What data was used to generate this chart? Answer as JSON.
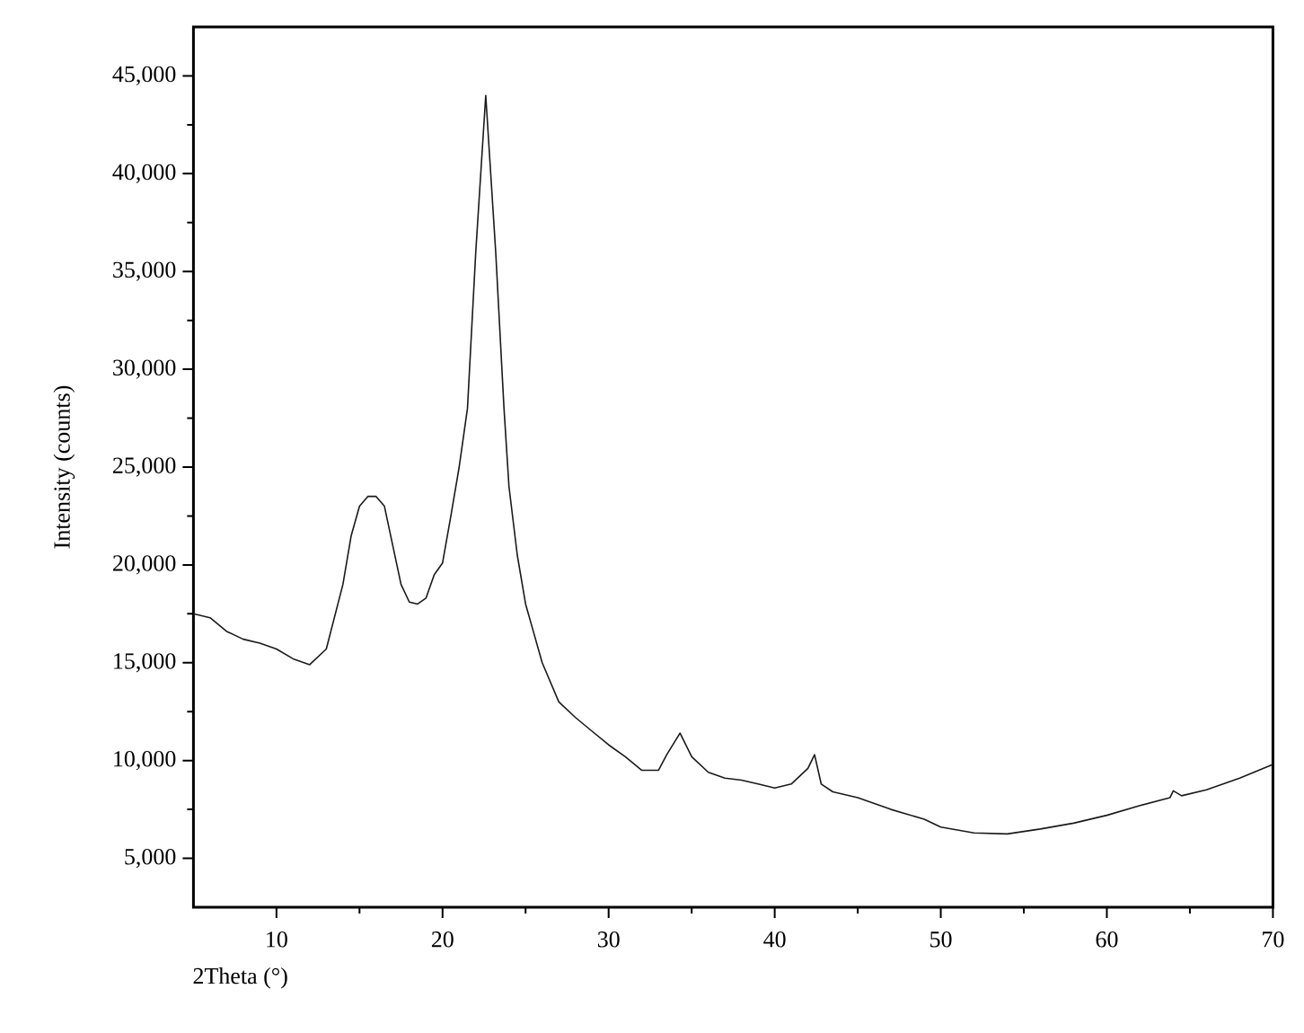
{
  "chart_data": {
    "type": "line",
    "xlabel": "2Theta (°)",
    "ylabel": "Intensity (counts)",
    "x": [
      5,
      6,
      7,
      8,
      9,
      10,
      11,
      12,
      13,
      14,
      14.5,
      15,
      15.5,
      16,
      16.5,
      17,
      17.5,
      18,
      18.5,
      19,
      19.5,
      20,
      20.5,
      21,
      21.5,
      22,
      22.6,
      23.2,
      23.7,
      24,
      24.5,
      25,
      25.5,
      26,
      27,
      28,
      29,
      30,
      31,
      32,
      33,
      33.5,
      34.3,
      35,
      36,
      37,
      38,
      39,
      40,
      41,
      42,
      42.4,
      42.8,
      43.5,
      45,
      47,
      49,
      50,
      52,
      54,
      56,
      58,
      60,
      62,
      63.8,
      64,
      64.5,
      66,
      68,
      70
    ],
    "values": [
      17500,
      17300,
      16600,
      16200,
      16000,
      15700,
      15200,
      14900,
      15700,
      19000,
      21500,
      23000,
      23500,
      23500,
      23000,
      21000,
      19000,
      18100,
      18000,
      18300,
      19500,
      20100,
      22500,
      25000,
      28000,
      36000,
      44000,
      36000,
      28000,
      24000,
      20500,
      18000,
      16500,
      15000,
      13000,
      12200,
      11500,
      10800,
      10200,
      9500,
      9500,
      10300,
      11400,
      10200,
      9400,
      9100,
      9000,
      8800,
      8600,
      8800,
      9600,
      10300,
      8800,
      8400,
      8100,
      7500,
      7000,
      6600,
      6300,
      6250,
      6500,
      6800,
      7200,
      7700,
      8100,
      8450,
      8200,
      8500,
      9100,
      9800
    ],
    "color": "#1a1a1a",
    "xlim": [
      5,
      70
    ],
    "ylim": [
      2500,
      47500
    ],
    "xticks": [
      10,
      20,
      30,
      40,
      50,
      60,
      70
    ],
    "yticks": [
      {
        "value": 5000,
        "label": "5,000"
      },
      {
        "value": 10000,
        "label": "10,000"
      },
      {
        "value": 15000,
        "label": "15,000"
      },
      {
        "value": 20000,
        "label": "20,000"
      },
      {
        "value": 25000,
        "label": "25,000"
      },
      {
        "value": 30000,
        "label": "30,000"
      },
      {
        "value": 35000,
        "label": "35,000"
      },
      {
        "value": 40000,
        "label": "40,000"
      },
      {
        "value": 45000,
        "label": "45,000"
      }
    ]
  }
}
